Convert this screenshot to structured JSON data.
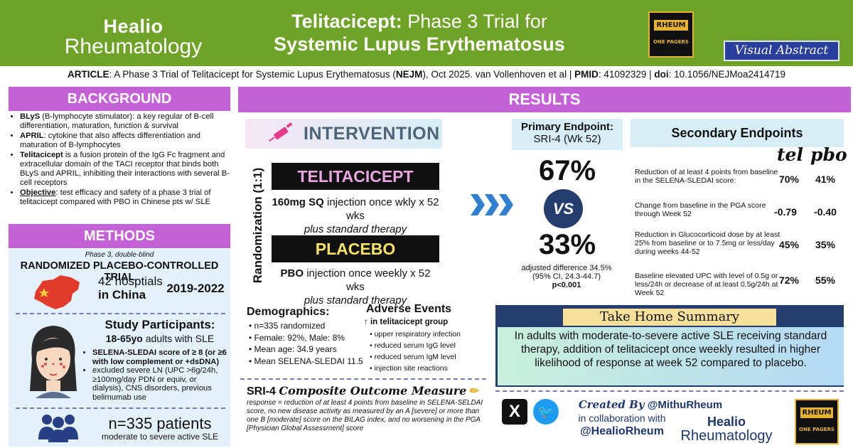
{
  "header": {
    "logo_line1": "Healio",
    "logo_line2": "Rheumatology",
    "title_drug": "Telitacicept:",
    "title_rest": " Phase 3 Trial for",
    "title_line2": "Systemic Lupus Erythematosus",
    "op_rheum": "RHEUM",
    "op_pagers": "ONE PAGERS",
    "visual_abstract": "Visual Abstract"
  },
  "article": {
    "label": "ARTICLE",
    "text": ": A Phase 3 Trial of Telitacicept for Systemic Lupus Erythematosus (",
    "journal": "NEJM",
    "text2": "), Oct 2025. van Vollenhoven et al | ",
    "pmid_label": "PMID",
    "pmid": ": 41092329 | ",
    "doi_label": "doi",
    "doi": ": 10.1056/NEJMoa2414719"
  },
  "background": {
    "heading": "BACKGROUND",
    "items": [
      {
        "bold": "BLyS",
        "text": " (B-lymphocyte stimulator): a key regular of B-cell differentiation, maturation, function & survival"
      },
      {
        "bold": "APRIL",
        "text": ": cytokine that also affects differentiation and maturation of B-lymphocytes"
      },
      {
        "bold": "Telitacicept",
        "text": " is a fusion protein of the IgG Fc fragment and extracellular domain of the TACI receptor that binds both BLyS and APRIL, inhibiting their interactions with several B-cell receptors"
      },
      {
        "bold": "Objective",
        "text": ": test efficacy and safety of a phase 3 trial of telitacicept compared with PBO in Chinese pts w/ SLE"
      }
    ]
  },
  "methods": {
    "heading": "METHODS",
    "phase": "Phase 3, double-blind",
    "design": "RANDOMIZED PLACEBO-CONTROLLED TRIAL",
    "sites_line1": "42 hosptials",
    "sites_line2": "in China",
    "dates": "2019-2022",
    "sp_title": "Study Participants:",
    "sp_age": "18-65yo",
    "sp_age_rest": " adults with SLE",
    "sp_criteria": "SELENA-SLEDAI score of ≥ 8 (or ≥6 with low complement or +dsDNA)",
    "sp_excluded": "excluded severe LN (UPC >6g/24h, ≥100mg/day PDN or equiv, or dialysis), CNS disorders, previous belimumab use",
    "n": "n=335 patients",
    "n_sub": "moderate to severe active SLE"
  },
  "results": {
    "heading": "RESULTS",
    "intervention": "INTERVENTION",
    "randomization": "Randomization (1:1)",
    "tel_label": "TELITACICEPT",
    "tel_desc1": "160mg SQ",
    "tel_desc1b": " injection once wkly x 52 wks",
    "tel_desc2": "plus standard therapy",
    "pbo_label": "PLACEBO",
    "pbo_desc1": "PBO",
    "pbo_desc1b": " injection once weekly x 52 wks",
    "pbo_desc2": "plus standard therapy"
  },
  "demographics": {
    "title": "Demographics:",
    "items": [
      "n=335 randomized",
      "Female: 92%, Male: 8%",
      "Mean age: 34.9 years",
      "Mean SELENA-SLEDAI 11.5"
    ]
  },
  "adverse": {
    "title": "Adverse Events",
    "sub": "↑ in telitacicept group",
    "items": [
      "upper respiratory infection",
      "reduced serum IgG level",
      "reduced serum IgM level",
      "injection site reactions"
    ]
  },
  "sri4": {
    "title": "SRI-4",
    "cursive": "Composite Outcome Measure",
    "text": "response = reduction of at least 4 points from baseline in SELENA-SELDAI score, no new disease activity as measured by an A [severe] or more than one B [moderate] score on the BILAG index, and no worsening in the PGA [Physician Global Assessment] score"
  },
  "primary": {
    "title": "Primary Endpoint:",
    "subtitle": "SRI-4 (Wk 52)",
    "tel": "67%",
    "vs": "VS",
    "pbo": "33%",
    "adj1": "adjusted difference 34.5%",
    "adj2": "(95% CI, 24.3-44.7)",
    "p": "p<0.001"
  },
  "secondary": {
    "title": "Secondary Endpoints",
    "col_tel": "tel",
    "col_pbo": "pbo",
    "rows": [
      {
        "text": "Reduction of at least 4 points from baseline in the SELENA-SLEDAI score:",
        "tel": "70%",
        "pbo": "41%"
      },
      {
        "text": "Change from baseline in the PGA score through Week 52",
        "tel": "-0.79",
        "pbo": "-0.40"
      },
      {
        "text": "Reduction in Glucocorticoid dose by at least 25% from baseline or to 7.5mg or less/day during weeks 44-52",
        "tel": "45%",
        "pbo": "35%"
      },
      {
        "text": "Baseline elevated UPC with level of 0.5g or less/24h or decrease of at least 0.5g/24h at Week 52",
        "tel": "72%",
        "pbo": "55%"
      }
    ]
  },
  "takehome": {
    "heading": "Take Home Summary",
    "text": "In adults with moderate-to-severe active SLE receiving standard therapy, addition of telitacicept once weekly resulted in higher likelihood of response at week 52 compared to placebo."
  },
  "footer": {
    "created_cursive": "Created By",
    "handle": "@MithuRheum",
    "collab": "in collaboration with",
    "handle2": "@HealioRheum",
    "logo_line1": "Healio",
    "logo_line2": "Rheumatology",
    "op_rheum": "RHEUM",
    "op_pagers": "ONE PAGERS"
  },
  "colors": {
    "header_green": "#6fa327",
    "section_purple": "#c561d6",
    "navy": "#243c6e",
    "gold": "#e7b32c"
  }
}
